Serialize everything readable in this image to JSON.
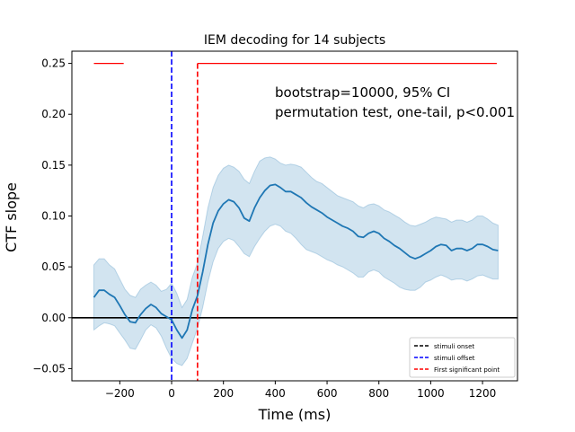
{
  "chart_data": {
    "type": "line",
    "title": "IEM decoding for 14 subjects",
    "xlabel": "Time (ms)",
    "ylabel": "CTF slope",
    "xlim": [
      -385,
      1335
    ],
    "ylim": [
      -0.062,
      0.262
    ],
    "x_ticks": [
      -200,
      0,
      200,
      400,
      600,
      800,
      1000,
      1200
    ],
    "y_ticks": [
      -0.05,
      0.0,
      0.05,
      0.1,
      0.15,
      0.2,
      0.25
    ],
    "x_tick_labels": [
      "−200",
      "0",
      "200",
      "400",
      "600",
      "800",
      "1000",
      "1200"
    ],
    "y_tick_labels": [
      "−0.05",
      "0.00",
      "0.05",
      "0.10",
      "0.15",
      "0.20",
      "0.25"
    ],
    "grid": false,
    "annotations": [
      "bootstrap=10000, 95% CI",
      "permutation test, one-tail, p<0.001"
    ],
    "legend": {
      "placement": "lower-right",
      "entries": [
        {
          "label": "stimuli onset",
          "color": "#000000",
          "style": "dashed"
        },
        {
          "label": "stimuli offset",
          "color": "#0000ff",
          "style": "dashed"
        },
        {
          "label": "First significant point",
          "color": "#ff0000",
          "style": "dashed"
        }
      ]
    },
    "series": [
      {
        "color": "#1f77b4",
        "x": [
          -300,
          -280,
          -260,
          -240,
          -220,
          -200,
          -180,
          -160,
          -140,
          -120,
          -100,
          -80,
          -60,
          -40,
          -20,
          0,
          20,
          40,
          60,
          80,
          100,
          120,
          140,
          160,
          180,
          200,
          220,
          240,
          260,
          280,
          300,
          320,
          340,
          360,
          380,
          400,
          420,
          440,
          460,
          480,
          500,
          520,
          540,
          560,
          580,
          600,
          620,
          640,
          660,
          680,
          700,
          720,
          740,
          760,
          780,
          800,
          820,
          840,
          860,
          880,
          900,
          920,
          940,
          960,
          980,
          1000,
          1020,
          1040,
          1060,
          1080,
          1100,
          1120,
          1140,
          1160,
          1180,
          1200,
          1220,
          1240,
          1260
        ],
        "y": [
          0.02,
          0.027,
          0.027,
          0.023,
          0.02,
          0.012,
          0.003,
          -0.004,
          -0.005,
          0.003,
          0.009,
          0.013,
          0.01,
          0.004,
          0.001,
          -0.002,
          -0.012,
          -0.02,
          -0.012,
          0.008,
          0.022,
          0.045,
          0.072,
          0.093,
          0.105,
          0.112,
          0.116,
          0.114,
          0.108,
          0.098,
          0.095,
          0.108,
          0.118,
          0.125,
          0.13,
          0.131,
          0.128,
          0.124,
          0.124,
          0.121,
          0.118,
          0.113,
          0.109,
          0.106,
          0.103,
          0.099,
          0.096,
          0.093,
          0.09,
          0.088,
          0.085,
          0.08,
          0.079,
          0.083,
          0.085,
          0.083,
          0.078,
          0.075,
          0.071,
          0.068,
          0.064,
          0.06,
          0.058,
          0.06,
          0.063,
          0.066,
          0.07,
          0.072,
          0.071,
          0.066,
          0.068,
          0.068,
          0.066,
          0.068,
          0.072,
          0.072,
          0.07,
          0.067,
          0.066
        ],
        "lower": [
          -0.012,
          -0.008,
          -0.005,
          -0.006,
          -0.008,
          -0.015,
          -0.022,
          -0.03,
          -0.031,
          -0.022,
          -0.012,
          -0.007,
          -0.01,
          -0.018,
          -0.03,
          -0.04,
          -0.045,
          -0.047,
          -0.04,
          -0.025,
          -0.01,
          0.01,
          0.035,
          0.055,
          0.068,
          0.075,
          0.078,
          0.076,
          0.07,
          0.063,
          0.06,
          0.07,
          0.078,
          0.085,
          0.09,
          0.092,
          0.09,
          0.085,
          0.083,
          0.078,
          0.072,
          0.067,
          0.065,
          0.063,
          0.06,
          0.057,
          0.055,
          0.052,
          0.05,
          0.047,
          0.044,
          0.04,
          0.04,
          0.045,
          0.047,
          0.045,
          0.04,
          0.037,
          0.034,
          0.03,
          0.028,
          0.027,
          0.027,
          0.03,
          0.035,
          0.037,
          0.04,
          0.042,
          0.04,
          0.037,
          0.038,
          0.038,
          0.036,
          0.038,
          0.041,
          0.042,
          0.04,
          0.038,
          0.038
        ],
        "upper": [
          0.052,
          0.058,
          0.058,
          0.052,
          0.048,
          0.038,
          0.028,
          0.022,
          0.02,
          0.028,
          0.032,
          0.035,
          0.032,
          0.026,
          0.028,
          0.034,
          0.024,
          0.01,
          0.018,
          0.04,
          0.054,
          0.08,
          0.108,
          0.128,
          0.14,
          0.147,
          0.15,
          0.148,
          0.144,
          0.136,
          0.132,
          0.144,
          0.154,
          0.157,
          0.158,
          0.156,
          0.152,
          0.15,
          0.151,
          0.15,
          0.148,
          0.143,
          0.138,
          0.134,
          0.132,
          0.128,
          0.124,
          0.12,
          0.118,
          0.116,
          0.114,
          0.11,
          0.108,
          0.111,
          0.112,
          0.11,
          0.106,
          0.104,
          0.101,
          0.098,
          0.094,
          0.091,
          0.09,
          0.092,
          0.094,
          0.097,
          0.099,
          0.098,
          0.097,
          0.094,
          0.096,
          0.096,
          0.094,
          0.096,
          0.1,
          0.1,
          0.097,
          0.093,
          0.091
        ]
      }
    ],
    "reference_lines": [
      {
        "orientation": "horizontal",
        "y": 0,
        "color": "#000000",
        "style": "solid"
      },
      {
        "orientation": "vertical",
        "x": 0,
        "color": "#0000ff",
        "style": "dashed"
      },
      {
        "orientation": "vertical",
        "x": 100,
        "color": "#ff0000",
        "style": "dashed",
        "y_top": 0.25
      }
    ],
    "significance_segments": [
      {
        "x_start": -300,
        "x_end": -185,
        "y": 0.25,
        "color": "#ff0000"
      },
      {
        "x_start": 100,
        "x_end": 1255,
        "y": 0.25,
        "color": "#ff0000"
      }
    ],
    "colors": {
      "line": "#1f77b4",
      "band": "#1f77b4",
      "band_opacity": 0.2
    }
  }
}
